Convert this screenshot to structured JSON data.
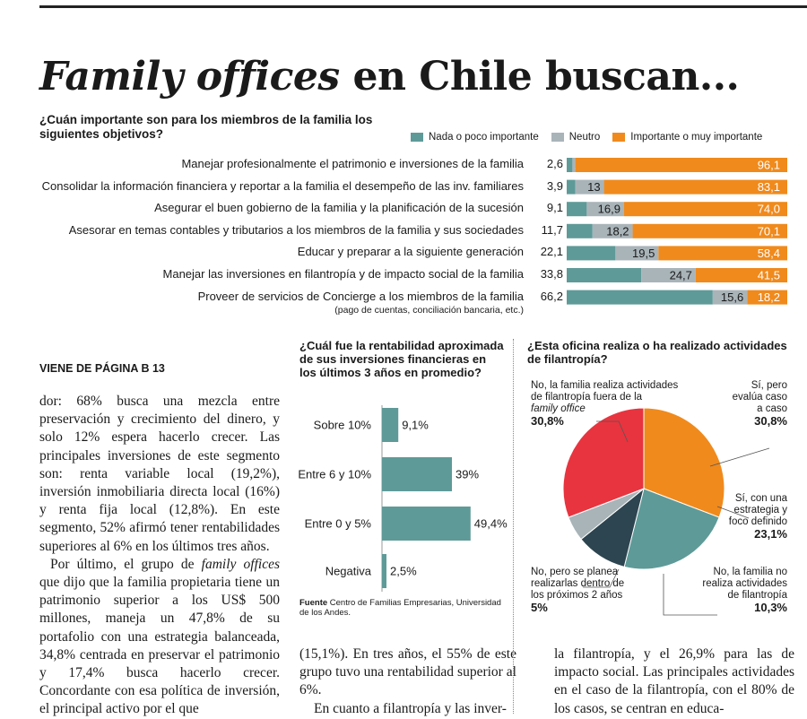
{
  "headline": {
    "italic": "Family offices",
    "rest": " en Chile buscan..."
  },
  "chart1": {
    "question": "¿Cuán importante son para los miembros de la familia los siguientes objetivos?",
    "legend": [
      "Nada o poco importante",
      "Neutro",
      "Importante o muy importante"
    ],
    "colors": {
      "nada": "#5e9a98",
      "neutro": "#a9b4b9",
      "importante": "#f08a1c"
    },
    "footnote": "(pago de cuentas, conciliación bancaria, etc.)",
    "rows": [
      {
        "label": "Manejar profesionalmente el patrimonio e inversiones de la familia",
        "nada": "2,6",
        "neutro": "1,3",
        "importante": "96,1"
      },
      {
        "label": "Consolidar la información financiera y reportar a la familia el desempeño de las inv. familiares",
        "nada": "3,9",
        "neutro": "13",
        "importante": "83,1"
      },
      {
        "label": "Asegurar el buen gobierno de la familia y la planificación de la sucesión",
        "nada": "9,1",
        "neutro": "16,9",
        "importante": "74,0"
      },
      {
        "label": "Asesorar en temas contables y tributarios a los miembros de la familia y sus sociedades",
        "nada": "11,7",
        "neutro": "18,2",
        "importante": "70,1"
      },
      {
        "label": "Educar y preparar a la siguiente generación",
        "nada": "22,1",
        "neutro": "19,5",
        "importante": "58,4"
      },
      {
        "label": "Manejar las inversiones en filantropía y de impacto social de la familia",
        "nada": "33,8",
        "neutro": "24,7",
        "importante": "41,5"
      },
      {
        "label": "Proveer de servicios de Concierge a los miembros de la familia",
        "nada": "66,2",
        "neutro": "15,6",
        "importante": "18,2"
      }
    ]
  },
  "chart_data": [
    {
      "type": "bar",
      "title": "¿Cuán importante son para los miembros de la familia los siguientes objetivos?",
      "categories": [
        "Manejar profesionalmente el patrimonio e inversiones de la familia",
        "Consolidar la información financiera y reportar a la familia el desempeño de las inv. familiares",
        "Asegurar el buen gobierno de la familia y la planificación de la sucesión",
        "Asesorar en temas contables y tributarios a los miembros de la familia y sus sociedades",
        "Educar y preparar a la siguiente generación",
        "Manejar las inversiones en filantropía y de impacto social de la familia",
        "Proveer de servicios de Concierge a los miembros de la familia"
      ],
      "series": [
        {
          "name": "Nada o poco importante",
          "values": [
            2.6,
            3.9,
            9.1,
            11.7,
            22.1,
            33.8,
            66.2
          ]
        },
        {
          "name": "Neutro",
          "values": [
            1.3,
            13,
            16.9,
            18.2,
            19.5,
            24.7,
            15.6
          ]
        },
        {
          "name": "Importante o muy importante",
          "values": [
            96.1,
            83.1,
            74.0,
            70.1,
            58.4,
            41.5,
            18.2
          ]
        }
      ],
      "stacked": true,
      "orientation": "horizontal",
      "legend": "top-right"
    },
    {
      "type": "bar",
      "title": "¿Cuál fue la rentabilidad aproximada de sus inversiones financieras en los últimos 3 años en promedio?",
      "categories": [
        "Sobre 10%",
        "Entre 6 y 10%",
        "Entre 0 y 5%",
        "Negativa"
      ],
      "values": [
        9.1,
        39,
        49.4,
        2.5
      ],
      "labels": [
        "9,1%",
        "39%",
        "49,4%",
        "2,5%"
      ],
      "orientation": "horizontal",
      "color": "#5e9a98"
    },
    {
      "type": "pie",
      "title": "¿Esta oficina realiza o ha realizado actividades de filantropía?",
      "categories": [
        "Sí, pero evalúa caso a caso",
        "Sí, con una estrategia y foco definido",
        "No, la familia no realiza actividades de filantropía",
        "No, pero se planea realizarlas dentro de los próximos 2 años",
        "No, la familia realiza actividades de filantropía fuera de la family office"
      ],
      "values": [
        30.8,
        23.1,
        10.3,
        5,
        30.8
      ],
      "colors": [
        "#f08a1c",
        "#5e9a98",
        "#2d4550",
        "#a9b4b9",
        "#e8343f"
      ]
    }
  ],
  "chart2": {
    "question": "¿Cuál fue la rentabilidad aproximada de sus inversiones financieras en los últimos 3 años en promedio?",
    "fuente_label": "Fuente",
    "fuente_text": " Centro de Familias Empresarias, Universidad de los Andes."
  },
  "chart3": {
    "question": "¿Esta oficina realiza o ha realizado actividades de filantropía?",
    "labels": [
      {
        "l1": "No, la familia realiza actividades",
        "l2": "de filantropía fuera de la",
        "l3i": "family office",
        "pct": "30,8%"
      },
      {
        "l1": "Sí, pero",
        "l2": "evalúa caso",
        "l3": "a caso",
        "pct": "30,8%"
      },
      {
        "l1": "Sí, con una",
        "l2": "estrategia y",
        "l3": "foco definido",
        "pct": "23,1%"
      },
      {
        "l1": "No, la familia no",
        "l2": "realiza actividades",
        "l3": "de filantropía",
        "pct": "10,3%"
      },
      {
        "l1": "No, pero se planea",
        "l2": "realizarlas dentro de",
        "l3": "los próximos 2 años",
        "pct": "5%"
      }
    ]
  },
  "article": {
    "viene": "VIENE DE PÁGINA B 13",
    "col1_p1": "dor: 68% busca una mezcla entre preservación y crecimiento del dinero, y solo 12% espera hacerlo crecer. Las principales inversiones de este segmento son: renta variable local (19,2%), inversión inmobiliaria directa local (16%) y renta fija local (12,8%). En este segmento, 52% afirmó tener rentabilidades superiores al 6% en los últimos tres años.",
    "col1_p2a": "Por último, el grupo de ",
    "col1_p2i": "family offices",
    "col1_p2b": " que dijo que la familia propietaria tiene un patrimonio superior a los US$ 500 millones, maneja un 47,8% de su portafolio con una estrategia balanceada, 34,8% centrada en preservar el patrimonio y 17,4% busca hacerlo crecer. Concordante con esa política de inversión, el principal activo por el que",
    "col2_p1": "(15,1%). En tres años, el 55% de este grupo tuvo una rentabilidad superior al 6%.",
    "col2_p2": "En cuanto a filantropía y las inver-",
    "col3_p1": "la filantropía, y el 26,9% para las de impacto social. Las principales actividades en el caso de la filantropía, con el 80% de los casos, se centran en educa-"
  }
}
